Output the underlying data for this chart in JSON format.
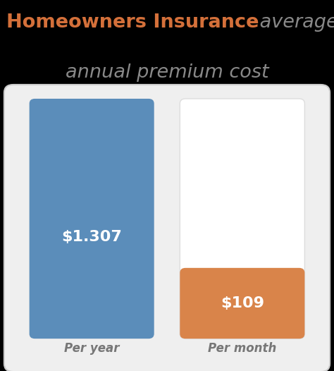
{
  "title_bold": "Homeowners Insurance",
  "title_average": " average",
  "title_line2": "annual premium cost",
  "title_bold_color": "#d4703a",
  "title_italic_color": "#888888",
  "bar1_label": "$1.307",
  "bar1_color": "#5b8dba",
  "bar1_xlabel": "Per year",
  "bar2_label": "$109",
  "bar2_color": "#d9844a",
  "bar2_xlabel": "Per month",
  "bar_text_color": "#ffffff",
  "xlabel_color": "#777777",
  "bg_color": "#000000",
  "panel_color": "#efefef",
  "panel_edge_color": "#cccccc",
  "bar2_bg_color": "#ffffff",
  "bar2_bg_edge_color": "#dddddd",
  "bar2_ratio": 0.265,
  "figsize": [
    4.74,
    5.26
  ],
  "dpi": 100
}
